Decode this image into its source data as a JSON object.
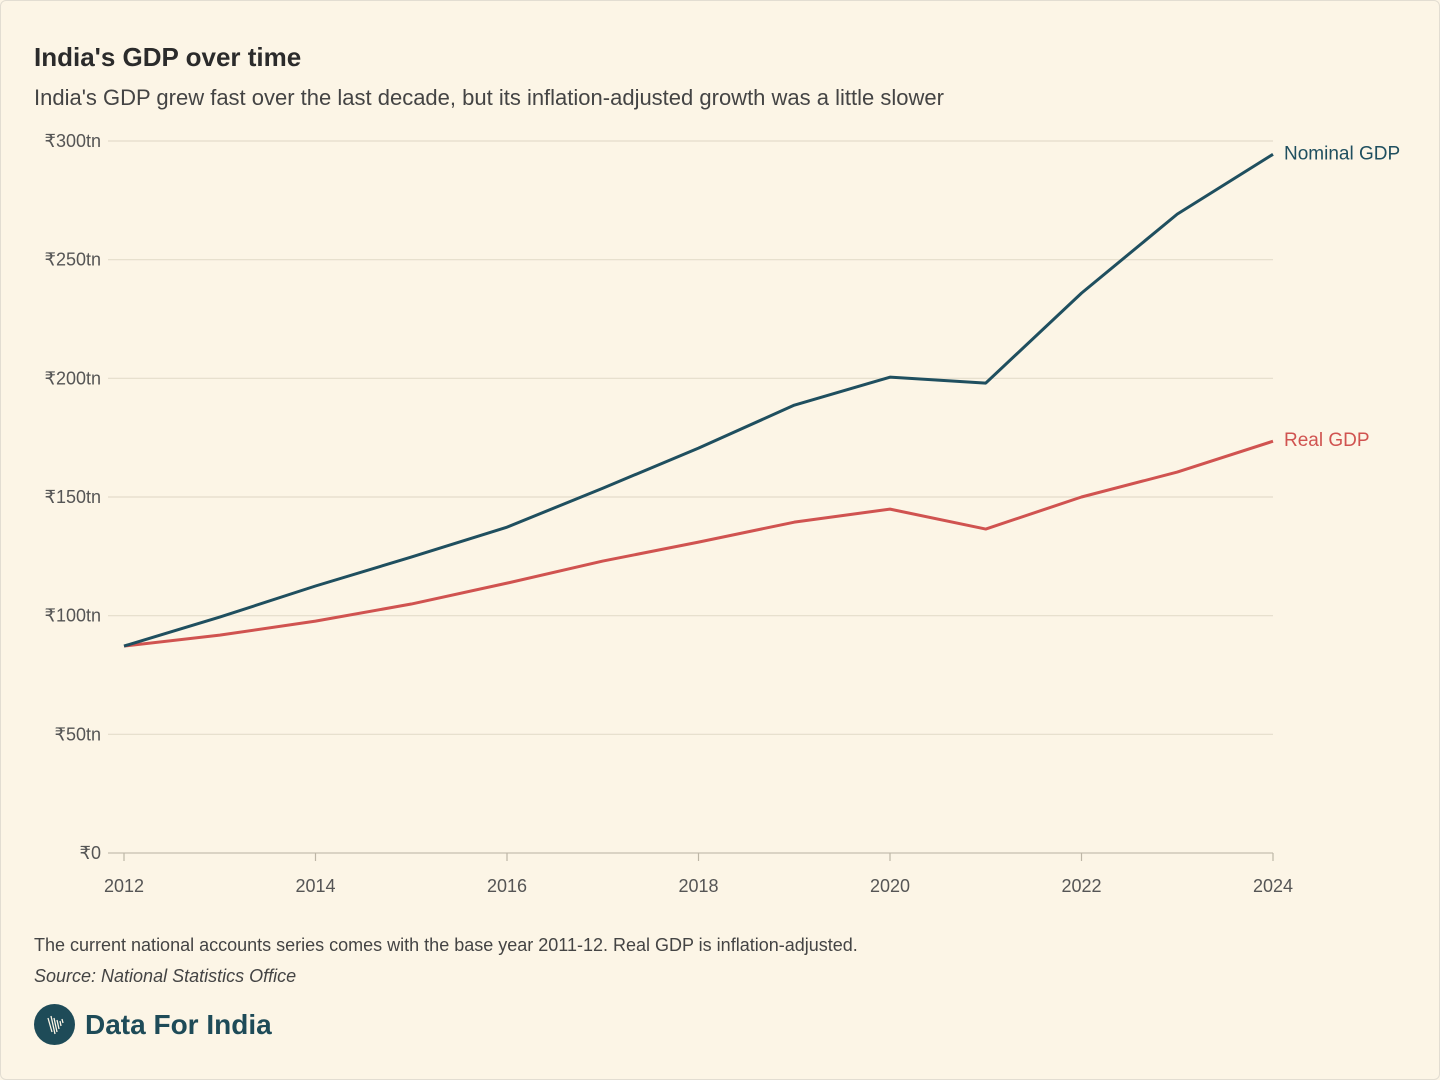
{
  "header": {
    "title": "India's GDP over time",
    "subtitle": "India's GDP grew fast over the last decade, but its inflation-adjusted growth was a little slower"
  },
  "footer": {
    "note": "The current national accounts series comes with the base year 2011-12. Real GDP is inflation-adjusted.",
    "source": "Source: National Statistics Office",
    "brand": "Data For India"
  },
  "chart_data": {
    "type": "line",
    "title": "India's GDP over time",
    "xlabel": "",
    "ylabel": "",
    "x": [
      2012,
      2013,
      2014,
      2015,
      2016,
      2017,
      2018,
      2019,
      2020,
      2021,
      2022,
      2023,
      2024
    ],
    "xticks": [
      2012,
      2014,
      2016,
      2018,
      2020,
      2022,
      2024
    ],
    "xtick_labels": [
      "2012",
      "2014",
      "2016",
      "2018",
      "2020",
      "2022",
      "2024"
    ],
    "xlim": [
      2012,
      2024
    ],
    "ylim": [
      0,
      300
    ],
    "yticks": [
      0,
      50,
      100,
      150,
      200,
      250,
      300
    ],
    "ytick_labels": [
      "₹0",
      "₹50tn",
      "₹100tn",
      "₹150tn",
      "₹200tn",
      "₹250tn",
      "₹300tn"
    ],
    "grid": true,
    "legend": "direct labels at line ends",
    "series": [
      {
        "name": "Nominal GDP",
        "color": "#1f4f5f",
        "values": [
          87.2,
          99.4,
          112.5,
          124.7,
          137.3,
          153.7,
          170.6,
          188.7,
          200.5,
          198,
          235.9,
          269.2,
          294.4
        ]
      },
      {
        "name": "Real GDP",
        "color": "#d05350",
        "values": [
          87.2,
          91.8,
          97.7,
          104.9,
          113.7,
          123,
          131,
          139.4,
          144.9,
          136.5,
          150,
          160.5,
          173.5
        ]
      }
    ]
  }
}
